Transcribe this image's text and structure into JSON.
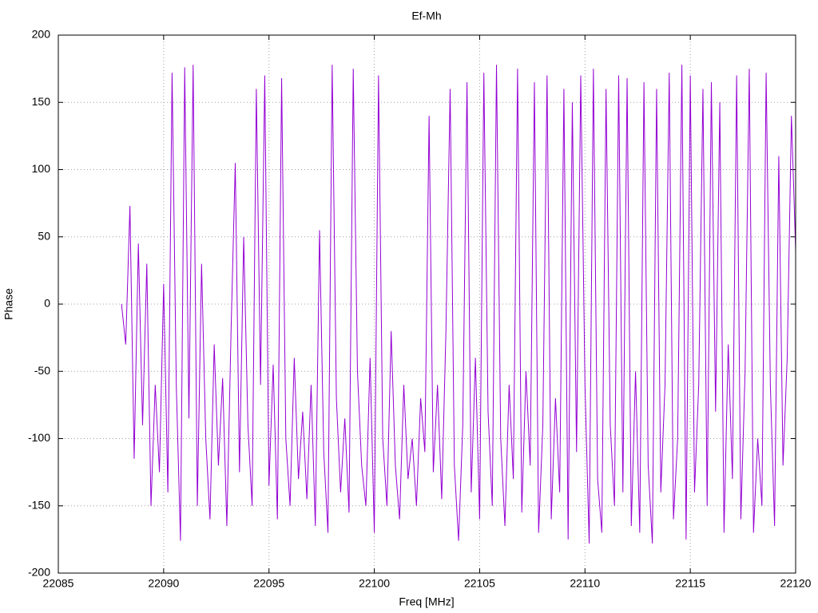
{
  "chart_data": {
    "type": "line",
    "title": "Ef-Mh",
    "x_label": "Freq [MHz]",
    "y_label": "Phase",
    "color": "#9400d3",
    "grid": true,
    "xlim": [
      22085,
      22120
    ],
    "xticks": [
      22085,
      22090,
      22095,
      22100,
      22105,
      22110,
      22115,
      22120
    ],
    "ylim": [
      -200,
      200
    ],
    "yticks": [
      -200,
      -150,
      -100,
      -50,
      0,
      50,
      100,
      150,
      200
    ],
    "x": [
      22088,
      22088.2,
      22088.4,
      22088.6,
      22088.8,
      22089,
      22089.2,
      22089.4,
      22089.6,
      22089.8,
      22090,
      22090.2,
      22090.4,
      22090.6,
      22090.8,
      22091,
      22091.2,
      22091.4,
      22091.6,
      22091.8,
      22092,
      22092.2,
      22092.4,
      22092.6,
      22092.8,
      22093,
      22093.2,
      22093.4,
      22093.6,
      22093.8,
      22094,
      22094.2,
      22094.4,
      22094.6,
      22094.8,
      22095,
      22095.2,
      22095.4,
      22095.6,
      22095.8,
      22096,
      22096.2,
      22096.4,
      22096.6,
      22096.8,
      22097,
      22097.2,
      22097.4,
      22097.6,
      22097.8,
      22098,
      22098.2,
      22098.4,
      22098.6,
      22098.8,
      22099,
      22099.2,
      22099.4,
      22099.6,
      22099.8,
      22100,
      22100.2,
      22100.4,
      22100.6,
      22100.8,
      22101,
      22101.2,
      22101.4,
      22101.6,
      22101.8,
      22102,
      22102.2,
      22102.4,
      22102.6,
      22102.8,
      22103,
      22103.2,
      22103.4,
      22103.6,
      22103.8,
      22104,
      22104.2,
      22104.4,
      22104.6,
      22104.8,
      22105,
      22105.2,
      22105.4,
      22105.6,
      22105.8,
      22106,
      22106.2,
      22106.4,
      22106.6,
      22106.8,
      22107,
      22107.2,
      22107.4,
      22107.6,
      22107.8,
      22108,
      22108.2,
      22108.4,
      22108.6,
      22108.8,
      22109,
      22109.2,
      22109.4,
      22109.6,
      22109.8,
      22110,
      22110.2,
      22110.4,
      22110.6,
      22110.8,
      22111,
      22111.2,
      22111.4,
      22111.6,
      22111.8,
      22112,
      22112.2,
      22112.4,
      22112.6,
      22112.8,
      22113,
      22113.2,
      22113.4,
      22113.6,
      22113.8,
      22114,
      22114.2,
      22114.4,
      22114.6,
      22114.8,
      22115,
      22115.2,
      22115.4,
      22115.6,
      22115.8,
      22116,
      22116.2,
      22116.4,
      22116.6,
      22116.8,
      22117,
      22117.2,
      22117.4,
      22117.6,
      22117.8,
      22118,
      22118.2,
      22118.4,
      22118.6,
      22118.8,
      22119,
      22119.2,
      22119.4,
      22119.6,
      22119.8,
      22120
    ],
    "values": [
      0,
      -30,
      73,
      -115,
      45,
      -90,
      30,
      -150,
      -60,
      -125,
      15,
      -140,
      172,
      -60,
      -176,
      176,
      -85,
      178,
      -150,
      30,
      -100,
      -160,
      -30,
      -120,
      -55,
      -165,
      -20,
      105,
      -125,
      50,
      -90,
      -150,
      160,
      -60,
      170,
      -135,
      -45,
      -160,
      168,
      -100,
      -150,
      -40,
      -130,
      -80,
      -145,
      -60,
      -165,
      55,
      -110,
      -170,
      178,
      -70,
      -140,
      -85,
      -155,
      175,
      -50,
      -120,
      -150,
      -40,
      -170,
      170,
      -100,
      -150,
      -20,
      -120,
      -160,
      -60,
      -130,
      -100,
      -150,
      -70,
      -110,
      140,
      -125,
      -60,
      -145,
      -20,
      160,
      -120,
      -176,
      -90,
      165,
      -140,
      -40,
      -160,
      172,
      -80,
      -150,
      178,
      -100,
      -165,
      -60,
      -130,
      175,
      -155,
      -50,
      -120,
      165,
      -170,
      -90,
      170,
      -160,
      -70,
      -140,
      160,
      -175,
      150,
      -110,
      170,
      -60,
      -178,
      175,
      -130,
      -170,
      160,
      -90,
      -150,
      170,
      -140,
      168,
      -165,
      -50,
      -170,
      165,
      -120,
      -178,
      160,
      -140,
      -60,
      172,
      -160,
      -100,
      178,
      -175,
      170,
      -140,
      -60,
      160,
      -150,
      165,
      -80,
      150,
      -170,
      -30,
      -130,
      170,
      -160,
      -50,
      175,
      -170,
      -100,
      -150,
      172,
      -60,
      -165,
      110,
      -120,
      -40,
      140,
      40
    ]
  }
}
